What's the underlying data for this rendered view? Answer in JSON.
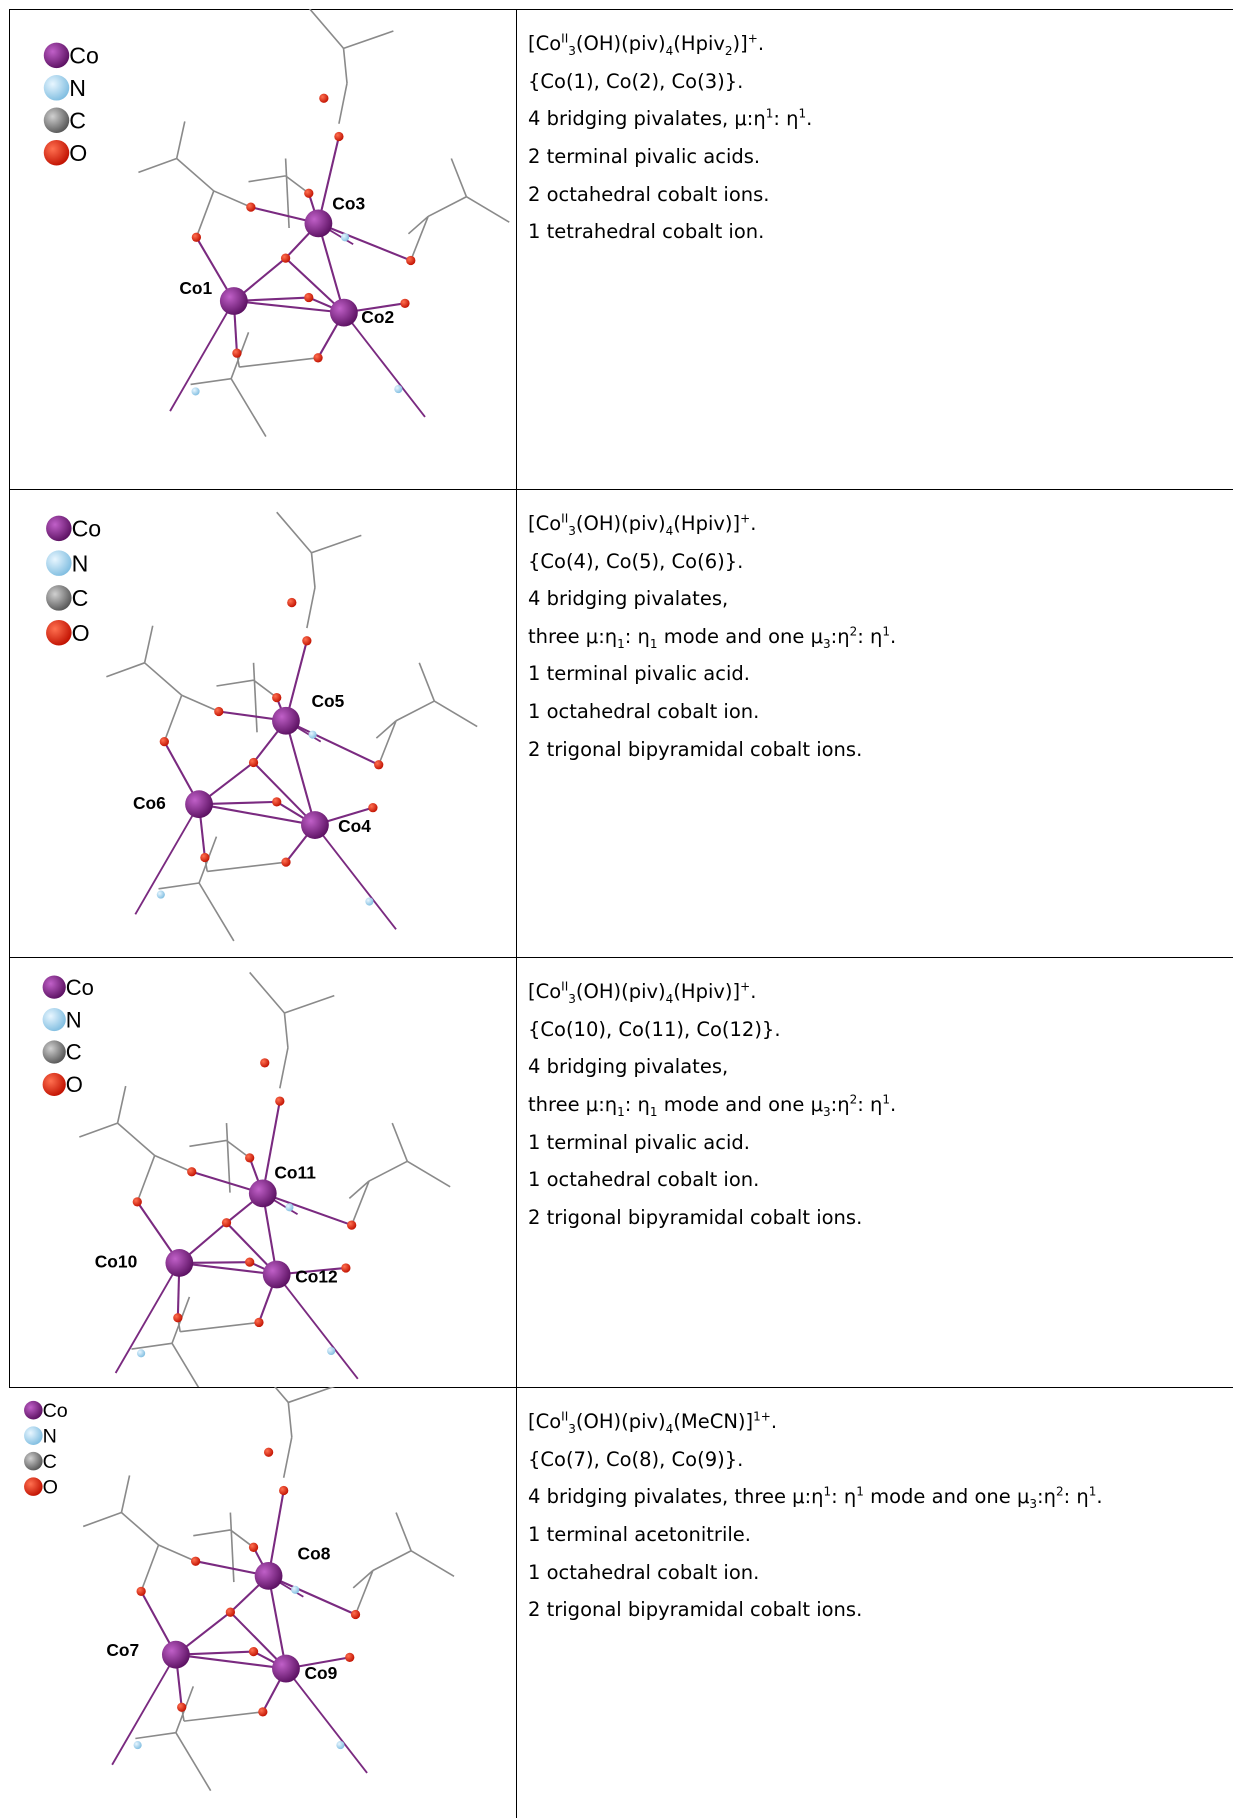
{
  "rows": [
    {
      "legend": [
        "Co",
        "N",
        "C",
        "O"
      ],
      "atom_labels": [
        "Co3",
        "Co1",
        "Co2"
      ],
      "lines": [
        [
          "[Co",
          {
            "sup": "II"
          },
          {
            "sub": "3"
          },
          "(OH)(piv)",
          {
            "sub": "4"
          },
          "(Hpiv",
          {
            "sub": "2"
          },
          ")]",
          {
            "sup": "+"
          },
          "."
        ],
        [
          "{Co(1), Co(2), Co(3)}."
        ],
        [
          "4 bridging pivalates, μ:η",
          {
            "sup": "1"
          },
          ": η",
          {
            "sup": "1"
          },
          "."
        ],
        [
          "2 terminal pivalic acids."
        ],
        [
          "2 octahedral cobalt ions."
        ],
        [
          "1 tetrahedral cobalt ion."
        ]
      ]
    },
    {
      "legend": [
        "Co",
        "N",
        "C",
        "O"
      ],
      "atom_labels": [
        "Co5",
        "Co6",
        "Co4"
      ],
      "lines": [
        [
          "[Co",
          {
            "sup": "II"
          },
          {
            "sub": "3"
          },
          "(OH)(piv)",
          {
            "sub": "4"
          },
          "(Hpiv)]",
          {
            "sup": "+"
          },
          "."
        ],
        [
          "{Co(4), Co(5), Co(6)}."
        ],
        [
          "4 bridging pivalates,"
        ],
        [
          "three μ:η",
          {
            "sub": "1"
          },
          ": η",
          {
            "sub": "1"
          },
          " mode and one μ",
          {
            "sub": "3"
          },
          ":η",
          {
            "sup": "2"
          },
          ": η",
          {
            "sup": "1"
          },
          "."
        ],
        [
          "1 terminal pivalic acid."
        ],
        [
          "1 octahedral cobalt ion."
        ],
        [
          "2 trigonal bipyramidal cobalt ions."
        ]
      ]
    },
    {
      "legend": [
        "Co",
        "N",
        "C",
        "O"
      ],
      "atom_labels": [
        "Co11",
        "Co10",
        "Co12"
      ],
      "lines": [
        [
          "[Co",
          {
            "sup": "II"
          },
          {
            "sub": "3"
          },
          "(OH)(piv)",
          {
            "sub": "4"
          },
          "(Hpiv)]",
          {
            "sup": "+"
          },
          "."
        ],
        [
          "{Co(10), Co(11), Co(12)}."
        ],
        [
          "4 bridging pivalates,"
        ],
        [
          "three μ:η",
          {
            "sub": "1"
          },
          ": η",
          {
            "sub": "1"
          },
          " mode and one μ",
          {
            "sub": "3"
          },
          ":η",
          {
            "sup": "2"
          },
          ": η",
          {
            "sup": "1"
          },
          "."
        ],
        [
          "1 terminal pivalic acid."
        ],
        [
          "1 octahedral cobalt ion."
        ],
        [
          "2 trigonal bipyramidal cobalt ions."
        ]
      ]
    },
    {
      "legend": [
        "Co",
        "N",
        "C",
        "O"
      ],
      "atom_labels": [
        "Co8",
        "Co7",
        "Co9"
      ],
      "lines": [
        [
          "[Co",
          {
            "sup": "II"
          },
          {
            "sub": "3"
          },
          "(OH)(piv)",
          {
            "sub": "4"
          },
          "(MeCN)]",
          {
            "sup": "1+"
          },
          "."
        ],
        [
          "{Co(7), Co(8), Co(9)}."
        ],
        [
          "4 bridging pivalates, three μ:η",
          {
            "sup": "1"
          },
          ": η",
          {
            "sup": "1"
          },
          " mode and one μ",
          {
            "sub": "3"
          },
          ":η",
          {
            "sup": "2"
          },
          ": η",
          {
            "sup": "1"
          },
          "."
        ],
        [
          "1 terminal acetonitrile."
        ],
        [
          "1 octahedral cobalt ion."
        ],
        [
          "2 trigonal bipyramidal cobalt ions."
        ]
      ]
    }
  ]
}
